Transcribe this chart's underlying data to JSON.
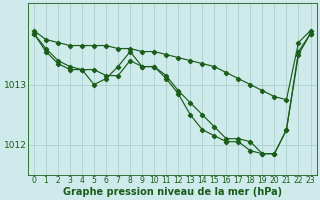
{
  "bg_color": "#ceeaea",
  "line_color": "#1a5c1a",
  "grid_color": "#a8c8c8",
  "series1": [
    1013.9,
    1013.75,
    1013.7,
    1013.65,
    1013.65,
    1013.65,
    1013.65,
    1013.6,
    1013.6,
    1013.55,
    1013.55,
    1013.5,
    1013.45,
    1013.4,
    1013.35,
    1013.3,
    1013.2,
    1013.1,
    1013.0,
    1012.9,
    1012.8,
    1012.75,
    1013.7,
    1013.9
  ],
  "series2": [
    1013.85,
    1013.6,
    1013.4,
    1013.3,
    1013.25,
    1013.0,
    1013.1,
    1013.3,
    1013.55,
    1013.3,
    1013.3,
    1013.15,
    1012.9,
    1012.7,
    1012.5,
    1012.3,
    1012.1,
    1012.1,
    1012.05,
    1011.85,
    1011.85,
    1012.25,
    1013.55,
    1013.85
  ],
  "series3": [
    1013.85,
    1013.55,
    1013.35,
    1013.25,
    1013.25,
    1013.25,
    1013.15,
    1013.15,
    1013.4,
    1013.3,
    1013.3,
    1013.1,
    1012.85,
    1012.5,
    1012.25,
    1012.15,
    1012.05,
    1012.05,
    1011.9,
    1011.85,
    1011.85,
    1012.25,
    1013.5,
    1013.85
  ],
  "x_ticks": [
    0,
    1,
    2,
    3,
    4,
    5,
    6,
    7,
    8,
    9,
    10,
    11,
    12,
    13,
    14,
    15,
    16,
    17,
    18,
    19,
    20,
    21,
    22,
    23
  ],
  "ylim": [
    1011.5,
    1014.35
  ],
  "yticks": [
    1012,
    1013
  ],
  "xlabel": "Graphe pression niveau de la mer (hPa)",
  "tick_fontsize": 5.5,
  "label_fontsize": 7.0
}
